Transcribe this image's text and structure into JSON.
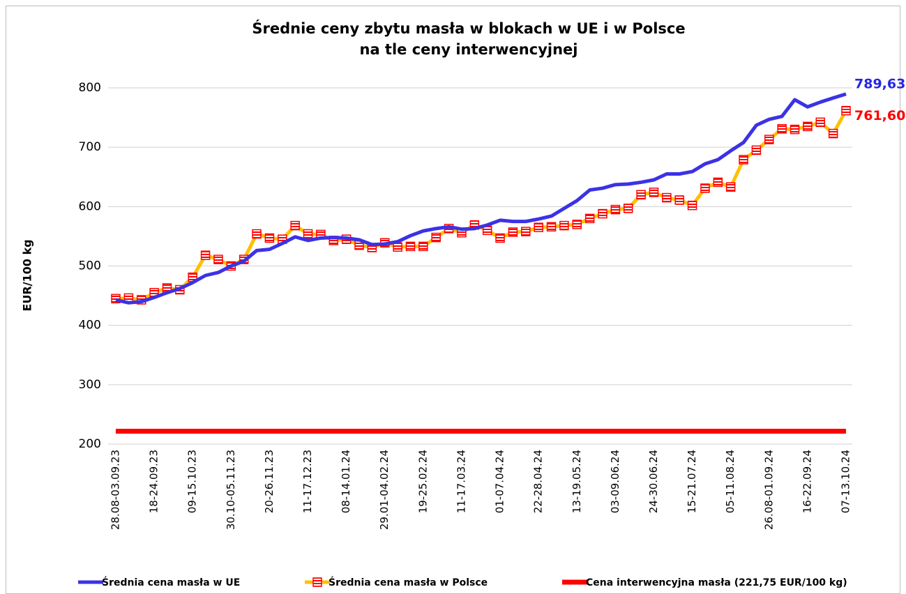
{
  "chart_data": {
    "type": "line",
    "title": "Średnie ceny zbytu masła w blokach w UE i w Polsce",
    "subtitle": "na tle ceny interwencyjnej",
    "y_label": "EUR/100 kg",
    "ylim": [
      200,
      800
    ],
    "yticks": [
      200,
      300,
      400,
      500,
      600,
      700,
      800
    ],
    "grid": true,
    "legend": "bottom",
    "categories": [
      "28.08-03.09.23",
      null,
      null,
      "18-24.09.23",
      null,
      null,
      "09-15.10.23",
      null,
      null,
      "30.10-05.11.23",
      null,
      null,
      "20-26.11.23",
      null,
      null,
      "11-17.12.23",
      null,
      null,
      "08-14.01.24",
      null,
      null,
      "29.01-04.02.24",
      null,
      null,
      "19-25.02.24",
      null,
      null,
      "11-17.03.24",
      null,
      null,
      "01-07.04.24",
      null,
      null,
      "22-28.04.24",
      null,
      null,
      "13-19.05.24",
      null,
      null,
      "03-09.06.24",
      null,
      null,
      "24-30.06.24",
      null,
      null,
      "15-21.07.24",
      null,
      null,
      "05-11.08.24",
      null,
      null,
      "26.08-01.09.24",
      null,
      null,
      "16-22.09.24",
      null,
      null,
      "07-13.10.24"
    ],
    "series": [
      {
        "name": "Średnia cena masła w UE",
        "color": "#3b32e6",
        "marker": false,
        "values": [
          443,
          438,
          440,
          447,
          455,
          462,
          472,
          484,
          489,
          500,
          508,
          526,
          528,
          538,
          549,
          543,
          547,
          548,
          547,
          544,
          536,
          537,
          541,
          551,
          559,
          563,
          566,
          562,
          563,
          569,
          577,
          575,
          575,
          579,
          584,
          597,
          610,
          628,
          631,
          637,
          638,
          641,
          645,
          655,
          655,
          659,
          672,
          679,
          694,
          708,
          737,
          747,
          752,
          780,
          768,
          776,
          783,
          789.63
        ],
        "value_labels": [
          null,
          null,
          null,
          null,
          null,
          null,
          null,
          null,
          null,
          null,
          null,
          null,
          null,
          null,
          null,
          null,
          null,
          null,
          null,
          null,
          null,
          null,
          null,
          null,
          null,
          null,
          null,
          null,
          null,
          null,
          null,
          null,
          null,
          null,
          null,
          null,
          null,
          null,
          null,
          null,
          null,
          null,
          null,
          null,
          null,
          null,
          null,
          null,
          null,
          null,
          null,
          null,
          null,
          null,
          null,
          null,
          null,
          "789,63"
        ]
      },
      {
        "name": "Średnia cena masła w Polsce",
        "color": "#ffc000",
        "marker": true,
        "marker_color": "#ff0000",
        "values": [
          445,
          446,
          443,
          455,
          463,
          460,
          481,
          518,
          511,
          500,
          511,
          554,
          547,
          545,
          568,
          554,
          553,
          543,
          545,
          535,
          531,
          539,
          532,
          533,
          533,
          548,
          563,
          556,
          569,
          560,
          547,
          557,
          558,
          565,
          566,
          568,
          570,
          580,
          588,
          595,
          597,
          620,
          624,
          615,
          611,
          602,
          631,
          641,
          633,
          679,
          695,
          713,
          731,
          730,
          735,
          742,
          723,
          761.6
        ],
        "value_labels": [
          null,
          null,
          null,
          null,
          null,
          null,
          null,
          null,
          null,
          null,
          null,
          null,
          null,
          null,
          null,
          null,
          null,
          null,
          null,
          null,
          null,
          null,
          null,
          null,
          null,
          null,
          null,
          null,
          null,
          null,
          null,
          null,
          null,
          null,
          null,
          null,
          null,
          null,
          null,
          null,
          null,
          null,
          null,
          null,
          null,
          null,
          null,
          null,
          null,
          null,
          null,
          null,
          null,
          null,
          null,
          null,
          null,
          "761,60"
        ]
      },
      {
        "name": "Cena interwencyjna masła (221,75 EUR/100 kg)",
        "color": "#ff0000",
        "marker": false,
        "values": [
          221.75,
          221.75,
          221.75,
          221.75,
          221.75,
          221.75,
          221.75,
          221.75,
          221.75,
          221.75,
          221.75,
          221.75,
          221.75,
          221.75,
          221.75,
          221.75,
          221.75,
          221.75,
          221.75,
          221.75,
          221.75,
          221.75,
          221.75,
          221.75,
          221.75,
          221.75,
          221.75,
          221.75,
          221.75,
          221.75,
          221.75,
          221.75,
          221.75,
          221.75,
          221.75,
          221.75,
          221.75,
          221.75,
          221.75,
          221.75,
          221.75,
          221.75,
          221.75,
          221.75,
          221.75,
          221.75,
          221.75,
          221.75,
          221.75,
          221.75,
          221.75,
          221.75,
          221.75,
          221.75,
          221.75,
          221.75,
          221.75,
          221.75
        ]
      }
    ]
  }
}
